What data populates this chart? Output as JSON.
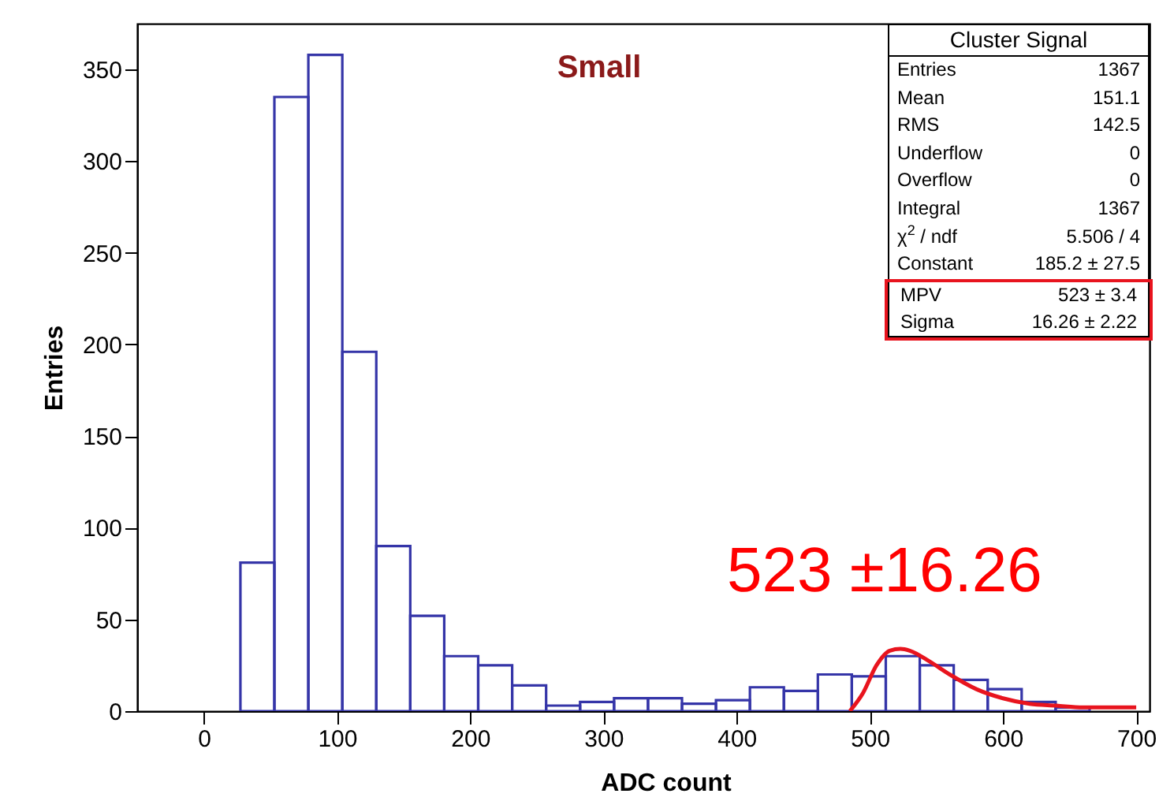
{
  "chart_data": {
    "type": "histogram",
    "title": "Small",
    "xlabel": "ADC count",
    "ylabel": "Entries",
    "color": "#3535a8",
    "bins": [
      27.5,
      53,
      78.5,
      104,
      129.5,
      155,
      180.5,
      206,
      231.5,
      257,
      282.5,
      308,
      333.5,
      359,
      384.5,
      410,
      435.5,
      461,
      486.5,
      512,
      537.5,
      563,
      588.5,
      614,
      639.5,
      665
    ],
    "values": [
      81,
      335,
      358,
      196,
      90,
      52,
      30,
      25,
      14,
      3,
      5,
      7,
      7,
      4,
      6,
      13,
      11,
      20,
      19,
      30,
      25,
      17,
      12,
      5,
      2
    ],
    "series": [
      {
        "type": "line",
        "color": "#e8141e",
        "x": [
          485,
          495,
          505,
          515,
          523,
          530,
          545,
          560,
          580,
          600,
          620,
          640,
          660,
          700
        ],
        "values": [
          0,
          10,
          25,
          33,
          34,
          33,
          27,
          20,
          12,
          7,
          4,
          3,
          2,
          2
        ]
      }
    ],
    "xlim": [
      -50,
      710
    ],
    "ylim": [
      0,
      375
    ],
    "xticks": [
      0,
      100,
      200,
      300,
      400,
      500,
      600,
      700
    ],
    "yticks": [
      0,
      50,
      100,
      150,
      200,
      250,
      300,
      350
    ],
    "annotations": [
      "Cluster Signal",
      "Entries",
      "1367",
      "Mean",
      "151.1",
      "RMS",
      "142.5",
      "Underflow",
      "0",
      "Overflow",
      "0",
      "Integral",
      "1367",
      "χ$^{2}$ / ndf",
      "5.506 / 4",
      "Constant",
      "185.2 ± 27.5",
      "MPV",
      "523 ± 3.4",
      "Sigma",
      "16.26 ± 2.22",
      "523 ±16.26"
    ]
  }
}
